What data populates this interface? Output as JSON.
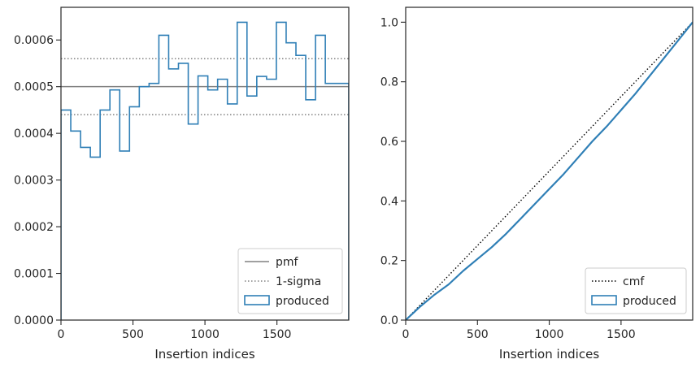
{
  "chart_data": [
    {
      "type": "line",
      "subtype": "step-histogram",
      "xlabel": "Insertion indices",
      "ylabel": "",
      "xlim": [
        0,
        1999
      ],
      "ylim": [
        0,
        0.00067
      ],
      "xticks": [
        0,
        500,
        1000,
        1500
      ],
      "xtick_labels": [
        "0",
        "500",
        "1000",
        "1500"
      ],
      "yticks": [
        0,
        0.0001,
        0.0002,
        0.0003,
        0.0004,
        0.0005,
        0.0006
      ],
      "ytick_labels": [
        "0.0000",
        "0.0001",
        "0.0002",
        "0.0003",
        "0.0004",
        "0.0005",
        "0.0006"
      ],
      "grid": false,
      "legend_position": "bottom-right",
      "bin_edges": [
        0,
        68,
        136,
        204,
        272,
        340,
        408,
        476,
        544,
        612,
        680,
        748,
        816,
        884,
        952,
        1020,
        1088,
        1156,
        1224,
        1292,
        1360,
        1428,
        1496,
        1564,
        1632,
        1700,
        1768,
        1836,
        1904,
        1999
      ],
      "series": [
        {
          "name": "pmf",
          "style": "solid",
          "color": "#808080",
          "y": 0.0005
        },
        {
          "name": "1-sigma",
          "style": "dotted",
          "color": "#808080",
          "y": [
            0.00044,
            0.00056
          ]
        },
        {
          "name": "produced",
          "style": "step",
          "color": "#2f7fb6",
          "values": [
            0.00045,
            0.000405,
            0.00037,
            0.000349,
            0.00045,
            0.000493,
            0.000362,
            0.000457,
            0.0005,
            0.000507,
            0.00061,
            0.000538,
            0.00055,
            0.00042,
            0.000523,
            0.000493,
            0.000516,
            0.000463,
            0.000638,
            0.00048,
            0.000522,
            0.000516,
            0.000638,
            0.000594,
            0.000567,
            0.000472,
            0.00061,
            0.000507,
            0.000507
          ]
        }
      ]
    },
    {
      "type": "line",
      "xlabel": "Insertion indices",
      "ylabel": "",
      "xlim": [
        0,
        1999
      ],
      "ylim": [
        0,
        1.05
      ],
      "xticks": [
        0,
        500,
        1000,
        1500
      ],
      "xtick_labels": [
        "0",
        "500",
        "1000",
        "1500"
      ],
      "yticks": [
        0,
        0.2,
        0.4,
        0.6,
        0.8,
        1.0
      ],
      "ytick_labels": [
        "0.0",
        "0.2",
        "0.4",
        "0.6",
        "0.8",
        "1.0"
      ],
      "grid": false,
      "legend_position": "bottom-right",
      "series": [
        {
          "name": "cmf",
          "style": "dotted",
          "color": "#000000",
          "x": [
            0,
            1999
          ],
          "y": [
            0,
            1.0
          ]
        },
        {
          "name": "produced",
          "style": "step",
          "color": "#2f7fb6",
          "x": [
            0,
            100,
            200,
            300,
            400,
            500,
            600,
            700,
            800,
            900,
            1000,
            1100,
            1200,
            1300,
            1400,
            1500,
            1600,
            1700,
            1800,
            1900,
            1999
          ],
          "y": [
            0,
            0.045,
            0.085,
            0.12,
            0.165,
            0.205,
            0.245,
            0.29,
            0.34,
            0.39,
            0.44,
            0.49,
            0.545,
            0.6,
            0.65,
            0.705,
            0.76,
            0.82,
            0.88,
            0.94,
            1.0
          ]
        }
      ]
    }
  ]
}
